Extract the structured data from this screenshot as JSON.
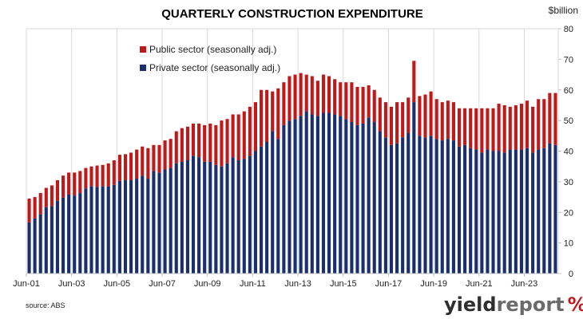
{
  "chart_data": {
    "type": "bar",
    "stacked": true,
    "title": "QUARTERLY CONSTRUCTION EXPENDITURE",
    "y_unit": "$billion",
    "ylim": [
      0,
      80
    ],
    "y_ticks": [
      0,
      10,
      20,
      30,
      40,
      50,
      60,
      70,
      80
    ],
    "x_tick_labels": [
      "Jun-01",
      "Jun-03",
      "Jun-05",
      "Jun-07",
      "Jun-09",
      "Jun-11",
      "Jun-13",
      "Jun-15",
      "Jun-17",
      "Jun-19",
      "Jun-21",
      "Jun-23"
    ],
    "legend_position": "top-left",
    "grid": "vertical",
    "series": [
      {
        "name": "Private sector (seasonally adj.)",
        "color": "#1a2f6e",
        "values": [
          16.7,
          18.0,
          19.3,
          21.7,
          22.0,
          23.8,
          24.8,
          25.8,
          25.5,
          26.3,
          27.8,
          28.5,
          28.3,
          28.5,
          28.5,
          29.0,
          30.3,
          30.5,
          30.5,
          31.0,
          32.0,
          31.0,
          33.5,
          33.0,
          34.0,
          34.5,
          36.0,
          36.5,
          37.0,
          38.5,
          38.0,
          36.5,
          36.5,
          35.5,
          35.0,
          36.0,
          38.0,
          37.0,
          37.5,
          38.5,
          40.0,
          41.5,
          43.0,
          46.5,
          44.0,
          48.5,
          50.0,
          50.5,
          51.5,
          53.0,
          52.0,
          51.5,
          52.5,
          52.5,
          52.0,
          51.5,
          50.5,
          49.5,
          48.5,
          49.0,
          51.0,
          49.5,
          46.5,
          44.5,
          42.0,
          42.5,
          44.5,
          46.0,
          56.0,
          45.0,
          44.5,
          45.0,
          44.0,
          43.5,
          44.0,
          43.5,
          41.5,
          42.0,
          41.0,
          40.5,
          39.5,
          40.5,
          40.0,
          40.0,
          39.5,
          40.5,
          40.5,
          40.5,
          41.0,
          39.5,
          40.5,
          41.0,
          42.5,
          42.0
        ]
      },
      {
        "name": "Public sector (seasonally adj.)",
        "color": "#c0191a",
        "values": [
          7.8,
          7.0,
          7.0,
          6.3,
          6.8,
          6.7,
          7.2,
          7.2,
          7.5,
          7.2,
          6.7,
          6.5,
          7.0,
          7.0,
          7.5,
          8.0,
          8.5,
          8.5,
          9.0,
          9.5,
          9.5,
          10.0,
          8.5,
          9.0,
          9.5,
          9.5,
          10.5,
          11.0,
          11.0,
          10.5,
          11.0,
          12.0,
          12.5,
          13.0,
          15.0,
          14.5,
          14.0,
          15.0,
          15.5,
          16.0,
          16.0,
          18.5,
          17.0,
          13.0,
          16.5,
          14.0,
          14.5,
          14.5,
          14.0,
          12.0,
          12.5,
          11.5,
          12.5,
          12.0,
          11.5,
          11.0,
          12.0,
          13.0,
          12.5,
          12.0,
          10.5,
          10.5,
          11.0,
          11.5,
          12.5,
          13.5,
          11.5,
          11.5,
          13.5,
          13.0,
          14.0,
          14.5,
          13.0,
          12.5,
          12.5,
          12.5,
          12.5,
          12.0,
          13.0,
          13.5,
          14.5,
          13.5,
          14.0,
          15.5,
          15.5,
          14.0,
          14.5,
          15.0,
          15.5,
          15.0,
          16.5,
          16.0,
          16.5,
          17.0
        ]
      }
    ]
  },
  "source_label": "source: ABS",
  "logo": {
    "part1": "yield",
    "part2": "report",
    "part3": "%"
  }
}
